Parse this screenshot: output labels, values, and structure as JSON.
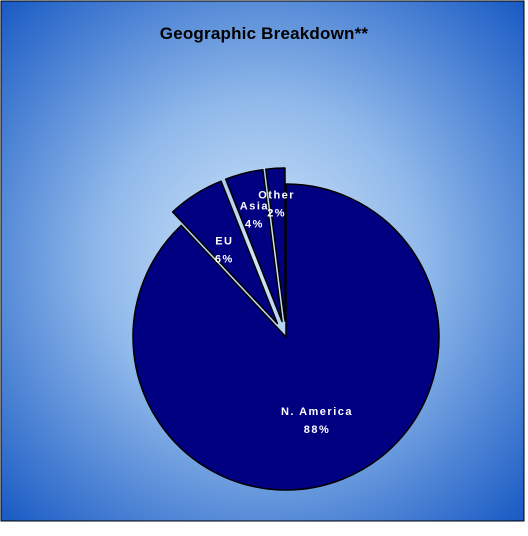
{
  "chart_data": {
    "type": "pie",
    "title": "Geographic Breakdown**",
    "categories": [
      "N. America",
      "EU",
      "Asia",
      "Other"
    ],
    "values": [
      88,
      6,
      4,
      2
    ],
    "value_labels": [
      "88%",
      "6%",
      "4%",
      "2%"
    ],
    "exploded": [
      "EU",
      "Asia",
      "Other"
    ],
    "legend": "none",
    "colors": {
      "slice_fill": "#000080",
      "slice_stroke": "#000000",
      "background_edge": "#1a5bc4",
      "background_center": "#d2e6fa",
      "label_text": "#ffffff",
      "title_text": "#000000"
    }
  }
}
